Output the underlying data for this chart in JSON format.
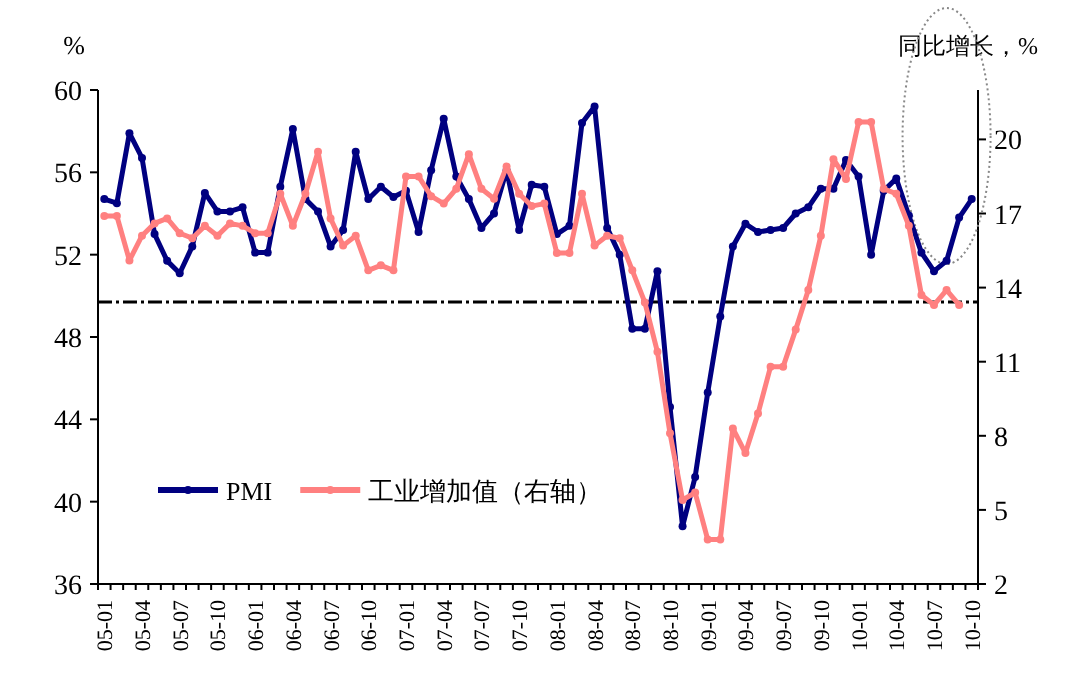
{
  "chart_data": {
    "type": "line",
    "ylabel": "%",
    "y2label": "同比增长，%",
    "categories": [
      "05-01",
      null,
      null,
      "05-04",
      null,
      null,
      "05-07",
      null,
      null,
      "05-10",
      null,
      null,
      "06-01",
      null,
      null,
      "06-04",
      null,
      null,
      "06-07",
      null,
      null,
      "06-10",
      null,
      null,
      "07-01",
      null,
      null,
      "07-04",
      null,
      null,
      "07-07",
      null,
      null,
      "07-10",
      null,
      null,
      "08-01",
      null,
      null,
      "08-04",
      null,
      null,
      "08-07",
      null,
      null,
      "08-10",
      null,
      null,
      "09-01",
      null,
      null,
      "09-04",
      null,
      null,
      "09-07",
      null,
      null,
      "09-10",
      null,
      null,
      "10-01",
      null,
      null,
      "10-04",
      null,
      null,
      "10-07",
      null,
      null,
      "10-10"
    ],
    "series": [
      {
        "name": "PMI",
        "color": "#000080",
        "values": [
          54.7,
          54.5,
          57.9,
          56.7,
          53.0,
          51.7,
          51.1,
          52.4,
          55.0,
          54.1,
          54.1,
          54.3,
          52.1,
          52.1,
          55.3,
          58.1,
          54.7,
          54.1,
          52.4,
          53.2,
          57.0,
          54.7,
          55.3,
          54.8,
          55.1,
          53.1,
          56.1,
          58.6,
          55.8,
          54.7,
          53.3,
          54.0,
          56.1,
          53.2,
          55.4,
          55.3,
          53.0,
          53.4,
          58.4,
          59.2,
          53.3,
          52.0,
          48.4,
          48.4,
          51.2,
          44.6,
          38.8,
          41.2,
          45.3,
          49.0,
          52.4,
          53.5,
          53.1,
          53.2,
          53.3,
          54.0,
          54.3,
          55.2,
          55.2,
          56.6,
          55.8,
          52.0,
          55.1,
          55.7,
          53.9,
          52.1,
          51.2,
          51.7,
          53.8,
          54.7
        ]
      },
      {
        "name": "工业增加值（右轴）",
        "color": "#ff8080",
        "axis": "y2",
        "values": [
          16.9,
          16.9,
          15.1,
          16.1,
          16.6,
          16.8,
          16.2,
          16.0,
          16.5,
          16.1,
          16.6,
          16.5,
          16.2,
          16.2,
          17.8,
          16.5,
          17.8,
          19.5,
          16.8,
          15.7,
          16.1,
          14.7,
          14.9,
          14.7,
          18.5,
          18.5,
          17.7,
          17.4,
          18.0,
          19.4,
          18.0,
          17.6,
          18.9,
          17.8,
          17.3,
          17.4,
          15.4,
          15.4,
          17.8,
          15.7,
          16.1,
          16.0,
          14.7,
          13.4,
          11.4,
          8.1,
          5.4,
          5.7,
          3.8,
          3.8,
          8.3,
          7.3,
          8.9,
          10.8,
          10.8,
          12.3,
          13.9,
          16.1,
          19.2,
          18.4,
          20.7,
          20.7,
          18.0,
          17.8,
          16.5,
          13.7,
          13.3,
          13.9,
          13.3,
          null
        ]
      }
    ],
    "ylim": [
      36,
      60
    ],
    "yticks": [
      36,
      40,
      44,
      48,
      52,
      56,
      60
    ],
    "y2lim": [
      2,
      22
    ],
    "y2ticks": [
      2,
      5,
      8,
      11,
      14,
      17,
      20
    ],
    "ref_lines": [
      {
        "axis": "y",
        "value": 49.7,
        "line_style": "dashdot"
      }
    ],
    "marker": "circle",
    "legend": "bottom left",
    "grid": false
  }
}
